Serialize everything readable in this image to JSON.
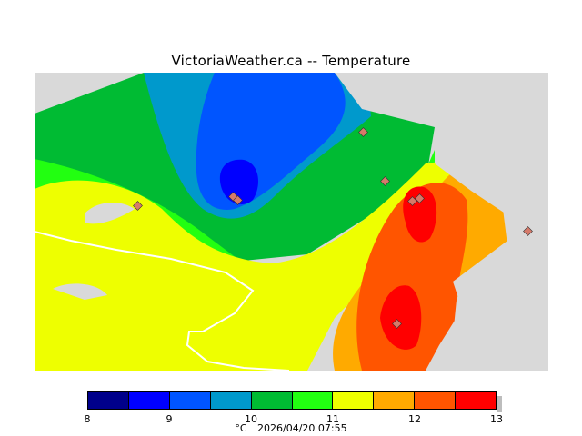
{
  "header": {
    "title": "VictoriaWeather.ca -- Temperature"
  },
  "legend": {
    "unit": "°C",
    "timestamp": "2026/04/20 07:55",
    "ticks": [
      "8",
      "9",
      "10",
      "11",
      "12",
      "13"
    ],
    "colors": [
      "#00008b",
      "#0000ff",
      "#0055ff",
      "#0099cc",
      "#00bb33",
      "#22ff11",
      "#eeff00",
      "#ffaa00",
      "#ff5500",
      "#ff0000"
    ]
  },
  "map": {
    "background_color": "#d9d9d9",
    "station_color": "#d67a6a"
  }
}
